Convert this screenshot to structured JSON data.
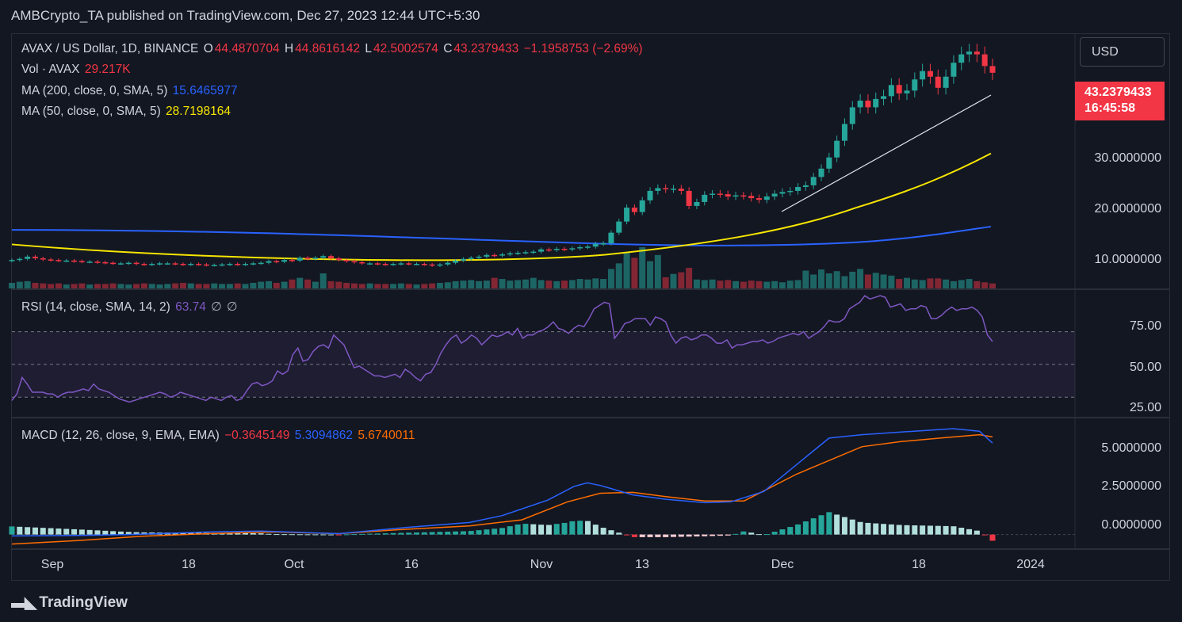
{
  "header": {
    "published": "AMBCrypto_TA published on TradingView.com, Dec 27, 2023 12:44 UTC+5:30"
  },
  "legend": {
    "symbol": "AVAX / US Dollar, 1D, BINANCE",
    "o_label": "O",
    "o_value": "44.4870704",
    "h_label": "H",
    "h_value": "44.8616142",
    "l_label": "L",
    "l_value": "42.5002574",
    "c_label": "C",
    "c_value": "43.2379433",
    "change": "−1.1958753 (−2.69%)",
    "vol_label": "Vol · AVAX",
    "vol_value": "29.217K",
    "ma200_label": "MA (200, close, 0, SMA, 5)",
    "ma200_value": "15.6465977",
    "ma50_label": "MA (50, close, 0, SMA, 5)",
    "ma50_value": "28.7198164",
    "rsi_label": "RSI (14, close, SMA, 14, 2)",
    "rsi_value": "63.74",
    "rsi_extra1": "∅",
    "rsi_extra2": "∅",
    "macd_label": "MACD (12, 26, close, 9, EMA, EMA)",
    "macd_hist": "−0.3645149",
    "macd_line": "5.3094862",
    "macd_signal": "5.6740011"
  },
  "currency_button": "USD",
  "price_tag": {
    "price": "43.2379433",
    "countdown": "16:45:58"
  },
  "axes": {
    "price_ticks": [
      "30.0000000",
      "20.0000000",
      "10.0000000"
    ],
    "rsi_ticks": [
      "75.00",
      "50.00",
      "25.00"
    ],
    "macd_ticks": [
      "5.0000000",
      "2.5000000",
      "0.0000000"
    ],
    "x_ticks": [
      "Sep",
      "18",
      "Oct",
      "16",
      "Nov",
      "13",
      "Dec",
      "18",
      "2024"
    ]
  },
  "brand": {
    "name": "TradingView"
  },
  "colors": {
    "up": "#26a69a",
    "down": "#f23645",
    "ma200": "#2962ff",
    "ma50": "#f7e600",
    "rsi": "#7e57c2",
    "macd": "#2962ff",
    "signal": "#ff6d00"
  },
  "chart_data": {
    "type": "candlestick",
    "x_range": [
      "2023-08-27",
      "2023-12-31"
    ],
    "price_ylim": [
      4.5,
      50
    ],
    "close": [
      9.6,
      9.8,
      10.2,
      9.9,
      9.7,
      9.6,
      9.5,
      9.5,
      9.4,
      9.3,
      9.3,
      9.2,
      9.1,
      9.0,
      9.0,
      9.1,
      8.9,
      8.8,
      8.9,
      9.0,
      9.0,
      8.9,
      8.8,
      8.9,
      8.8,
      8.7,
      8.7,
      8.8,
      8.9,
      8.8,
      8.9,
      9.0,
      9.1,
      9.4,
      9.3,
      9.6,
      9.5,
      10.0,
      9.8,
      10.0,
      10.3,
      9.9,
      9.6,
      9.4,
      9.2,
      9.0,
      9.0,
      8.9,
      8.8,
      8.9,
      9.0,
      8.9,
      8.9,
      8.8,
      8.6,
      8.8,
      9.1,
      9.5,
      9.8,
      10.0,
      10.2,
      10.5,
      10.4,
      10.6,
      10.8,
      10.9,
      11.0,
      11.1,
      11.5,
      11.4,
      11.6,
      11.5,
      11.7,
      11.9,
      12.0,
      12.5,
      12.6,
      14.5,
      16.5,
      19.0,
      18.2,
      20.3,
      22.0,
      22.5,
      22.3,
      22.4,
      22.0,
      19.3,
      20.0,
      21.3,
      21.5,
      21.4,
      21.0,
      21.2,
      21.1,
      20.7,
      20.4,
      21.0,
      21.5,
      21.8,
      22.0,
      22.7,
      23.0,
      24.5,
      26.0,
      28.0,
      31.0,
      34.0,
      37.0,
      38.2,
      37.0,
      38.5,
      39.0,
      41.0,
      39.5,
      40.0,
      42.0,
      43.5,
      42.5,
      40.5,
      42.5,
      45.0,
      46.5,
      47.0,
      46.5,
      44.4,
      43.2
    ],
    "volume": [
      1.0,
      1.2,
      1.3,
      1.0,
      0.9,
      0.8,
      0.9,
      0.7,
      0.8,
      0.9,
      0.7,
      0.8,
      0.8,
      0.9,
      0.8,
      0.7,
      0.8,
      0.9,
      0.8,
      0.7,
      0.8,
      0.9,
      1.0,
      0.9,
      0.8,
      0.8,
      0.9,
      0.8,
      0.8,
      0.9,
      0.8,
      1.0,
      1.2,
      1.3,
      1.0,
      1.2,
      1.6,
      1.9,
      1.6,
      1.2,
      2.7,
      1.3,
      1.2,
      1.0,
      0.9,
      0.8,
      0.9,
      0.8,
      0.8,
      0.8,
      0.9,
      0.8,
      0.7,
      0.8,
      0.9,
      1.0,
      1.1,
      1.3,
      1.4,
      1.5,
      1.3,
      1.4,
      1.9,
      1.7,
      1.4,
      1.5,
      1.6,
      1.9,
      1.5,
      1.4,
      1.3,
      1.4,
      1.5,
      1.7,
      1.6,
      1.8,
      1.7,
      3.5,
      4.5,
      6.5,
      5.5,
      7.4,
      4.9,
      6.0,
      2.0,
      2.6,
      2.9,
      3.7,
      1.6,
      1.5,
      1.6,
      1.4,
      1.5,
      1.3,
      1.2,
      1.4,
      1.3,
      1.2,
      1.3,
      1.1,
      1.4,
      1.5,
      3.2,
      2.5,
      3.4,
      2.7,
      3.1,
      2.2,
      3.0,
      3.5,
      2.5,
      2.8,
      2.5,
      2.3,
      1.7,
      1.9,
      1.6,
      1.5,
      1.8,
      1.8,
      1.6,
      1.3,
      1.5,
      1.7,
      1.3,
      1.1,
      0.9
    ],
    "ma200_endpoints": [
      15.0,
      15.6
    ],
    "ma50_final": 28.7198164,
    "rsi_ylim": [
      18,
      95
    ],
    "rsi_bands": [
      70,
      50,
      30
    ],
    "rsi": [
      28,
      32,
      42,
      38,
      33,
      33,
      33,
      32,
      32,
      30,
      32,
      33,
      33,
      34,
      35,
      34,
      38,
      35,
      34,
      33,
      31,
      29,
      28,
      27,
      28,
      29,
      30,
      31,
      32,
      33,
      32,
      30,
      31,
      33,
      32,
      31,
      30,
      29,
      28,
      30,
      29,
      28,
      30,
      31,
      28,
      29,
      34,
      38,
      39,
      37,
      38,
      40,
      46,
      44,
      46,
      56,
      60,
      52,
      53,
      58,
      61,
      62,
      60,
      68,
      65,
      62,
      55,
      48,
      49,
      47,
      45,
      43,
      43,
      42,
      43,
      44,
      42,
      47,
      45,
      42,
      40,
      44,
      45,
      50,
      57,
      62,
      66,
      68,
      63,
      65,
      68,
      66,
      62,
      65,
      68,
      67,
      68,
      70,
      68,
      72,
      66,
      68,
      68,
      70,
      71,
      73,
      76,
      72,
      71,
      69,
      72,
      74,
      73,
      78,
      84,
      86,
      88,
      87,
      66,
      70,
      75,
      76,
      78,
      78,
      78,
      74,
      79,
      78,
      76,
      68,
      63,
      66,
      67,
      65,
      66,
      68,
      68,
      66,
      63,
      63,
      65,
      60,
      62,
      62,
      63,
      64,
      64,
      65,
      63,
      64,
      66,
      67,
      68,
      69,
      68,
      70,
      66,
      68,
      70,
      73,
      77,
      76,
      76,
      78,
      84,
      86,
      88,
      92,
      90,
      91,
      92,
      91,
      85,
      86,
      87,
      83,
      84,
      84,
      86,
      85,
      78,
      78,
      80,
      83,
      85,
      83,
      84,
      84,
      85,
      83,
      79,
      68,
      64
    ],
    "macd_ylim": [
      -0.8,
      6.7
    ],
    "macd_line_knots": [
      [
        0,
        -0.08
      ],
      [
        0.1,
        -0.05
      ],
      [
        0.18,
        0.0
      ],
      [
        0.3,
        0.15
      ],
      [
        0.38,
        0.2
      ],
      [
        0.5,
        0.05
      ],
      [
        0.6,
        0.4
      ],
      [
        0.7,
        0.7
      ],
      [
        0.75,
        1.1
      ],
      [
        0.82,
        2.0
      ],
      [
        0.86,
        2.8
      ],
      [
        0.88,
        3.0
      ],
      [
        0.9,
        2.85
      ],
      [
        0.95,
        2.3
      ],
      [
        1.0,
        2.05
      ],
      [
        1.06,
        1.85
      ],
      [
        1.1,
        1.9
      ],
      [
        1.15,
        2.5
      ],
      [
        1.25,
        5.6
      ],
      [
        1.3,
        5.8
      ],
      [
        1.34,
        5.9
      ],
      [
        1.38,
        6.0
      ],
      [
        1.44,
        6.15
      ],
      [
        1.48,
        6.0
      ],
      [
        1.5,
        5.31
      ]
    ],
    "signal_line_knots": [
      [
        0,
        -0.55
      ],
      [
        0.1,
        -0.35
      ],
      [
        0.2,
        -0.1
      ],
      [
        0.3,
        0.05
      ],
      [
        0.4,
        0.15
      ],
      [
        0.5,
        0.05
      ],
      [
        0.6,
        0.3
      ],
      [
        0.7,
        0.5
      ],
      [
        0.78,
        0.85
      ],
      [
        0.85,
        1.9
      ],
      [
        0.9,
        2.4
      ],
      [
        0.95,
        2.45
      ],
      [
        1.0,
        2.2
      ],
      [
        1.06,
        1.95
      ],
      [
        1.12,
        1.95
      ],
      [
        1.2,
        3.5
      ],
      [
        1.3,
        5.1
      ],
      [
        1.36,
        5.4
      ],
      [
        1.42,
        5.6
      ],
      [
        1.48,
        5.8
      ],
      [
        1.5,
        5.67
      ]
    ]
  }
}
